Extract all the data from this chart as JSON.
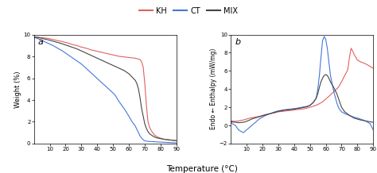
{
  "colors": {
    "KH": "#e06060",
    "CT": "#4477dd",
    "MIX": "#444444"
  },
  "panel_a": {
    "label": "a",
    "ylabel": "Weight (%)",
    "xlim": [
      0,
      90
    ],
    "ylim": [
      0,
      10
    ],
    "xticks": [
      10,
      20,
      30,
      40,
      50,
      60,
      70,
      80,
      90
    ],
    "yticks": [
      0,
      2,
      4,
      6,
      8,
      10
    ],
    "kh_x": [
      0,
      3,
      6,
      9,
      12,
      15,
      18,
      21,
      24,
      27,
      30,
      33,
      36,
      39,
      42,
      45,
      48,
      51,
      54,
      57,
      60,
      63,
      65,
      67,
      68,
      69,
      70,
      71,
      72,
      73,
      74,
      75,
      76,
      77,
      78,
      80,
      82,
      85,
      88,
      90
    ],
    "kh_y": [
      9.8,
      9.75,
      9.7,
      9.65,
      9.55,
      9.45,
      9.35,
      9.25,
      9.1,
      9.0,
      8.85,
      8.75,
      8.6,
      8.5,
      8.4,
      8.3,
      8.2,
      8.1,
      8.0,
      7.95,
      7.9,
      7.85,
      7.8,
      7.7,
      7.5,
      7.0,
      5.5,
      3.5,
      2.0,
      1.5,
      1.2,
      1.0,
      0.8,
      0.7,
      0.6,
      0.5,
      0.4,
      0.35,
      0.3,
      0.25
    ],
    "ct_x": [
      0,
      3,
      6,
      9,
      12,
      15,
      18,
      21,
      24,
      27,
      30,
      33,
      36,
      39,
      42,
      45,
      48,
      51,
      54,
      57,
      60,
      62,
      64,
      65,
      66,
      67,
      68,
      69,
      70,
      72,
      75,
      78,
      82,
      85,
      88,
      90
    ],
    "ct_y": [
      9.75,
      9.6,
      9.4,
      9.2,
      9.0,
      8.75,
      8.5,
      8.2,
      7.9,
      7.6,
      7.3,
      6.9,
      6.5,
      6.1,
      5.7,
      5.3,
      4.9,
      4.5,
      3.8,
      3.2,
      2.5,
      2.0,
      1.6,
      1.3,
      1.0,
      0.7,
      0.5,
      0.35,
      0.25,
      0.2,
      0.18,
      0.15,
      0.12,
      0.1,
      0.08,
      0.07
    ],
    "mix_x": [
      0,
      3,
      6,
      9,
      12,
      15,
      18,
      21,
      24,
      27,
      30,
      33,
      36,
      39,
      42,
      45,
      48,
      51,
      54,
      57,
      60,
      62,
      64,
      65,
      66,
      67,
      68,
      69,
      70,
      71,
      72,
      73,
      75,
      77,
      80,
      83,
      86,
      88,
      90
    ],
    "mix_y": [
      9.8,
      9.72,
      9.62,
      9.52,
      9.4,
      9.28,
      9.15,
      9.0,
      8.85,
      8.7,
      8.5,
      8.3,
      8.1,
      7.9,
      7.7,
      7.5,
      7.3,
      7.1,
      6.9,
      6.7,
      6.4,
      6.1,
      5.8,
      5.5,
      5.0,
      4.2,
      3.2,
      2.5,
      1.8,
      1.4,
      1.1,
      0.9,
      0.7,
      0.55,
      0.45,
      0.38,
      0.33,
      0.3,
      0.28
    ]
  },
  "panel_b": {
    "label": "b",
    "ylabel": "Endo ← Enthalpy (mW/mg)",
    "xlim": [
      0,
      90
    ],
    "ylim": [
      -2,
      10
    ],
    "xticks": [
      10,
      20,
      30,
      40,
      50,
      60,
      70,
      80,
      90
    ],
    "yticks": [
      -2,
      0,
      2,
      4,
      6,
      8,
      10
    ],
    "kh_x": [
      0,
      3,
      5,
      8,
      10,
      12,
      15,
      18,
      20,
      22,
      25,
      28,
      30,
      33,
      35,
      38,
      40,
      42,
      45,
      48,
      50,
      52,
      55,
      58,
      60,
      62,
      65,
      68,
      70,
      72,
      73,
      74,
      75,
      76,
      77,
      78,
      79,
      80,
      82,
      85,
      88,
      90
    ],
    "kh_y": [
      0.5,
      0.45,
      0.5,
      0.6,
      0.7,
      0.8,
      0.9,
      1.0,
      1.1,
      1.2,
      1.3,
      1.4,
      1.5,
      1.55,
      1.6,
      1.65,
      1.7,
      1.75,
      1.8,
      1.9,
      2.0,
      2.1,
      2.3,
      2.6,
      2.9,
      3.2,
      3.7,
      4.2,
      4.8,
      5.5,
      5.8,
      6.2,
      7.5,
      8.5,
      8.2,
      7.8,
      7.5,
      7.2,
      7.0,
      6.8,
      6.5,
      6.3
    ],
    "ct_x": [
      0,
      3,
      5,
      8,
      10,
      12,
      14,
      16,
      18,
      20,
      22,
      25,
      28,
      30,
      33,
      35,
      38,
      40,
      42,
      45,
      48,
      50,
      52,
      54,
      55,
      56,
      57,
      58,
      59,
      60,
      61,
      62,
      63,
      65,
      67,
      68,
      69,
      70,
      72,
      75,
      78,
      82,
      85,
      88,
      90
    ],
    "ct_y": [
      0.3,
      0.0,
      -0.5,
      -0.8,
      -0.5,
      -0.2,
      0.1,
      0.4,
      0.7,
      0.9,
      1.1,
      1.3,
      1.5,
      1.6,
      1.7,
      1.75,
      1.8,
      1.85,
      1.9,
      2.0,
      2.1,
      2.2,
      2.5,
      3.0,
      4.0,
      5.5,
      7.5,
      9.3,
      9.8,
      9.5,
      8.5,
      7.0,
      5.5,
      3.8,
      2.5,
      2.0,
      1.7,
      1.5,
      1.3,
      1.1,
      0.9,
      0.7,
      0.5,
      0.2,
      -0.5
    ],
    "mix_x": [
      0,
      3,
      5,
      8,
      10,
      12,
      14,
      16,
      18,
      20,
      22,
      25,
      28,
      30,
      33,
      35,
      38,
      40,
      42,
      45,
      48,
      50,
      52,
      54,
      55,
      56,
      57,
      58,
      59,
      60,
      61,
      62,
      63,
      65,
      67,
      68,
      69,
      70,
      72,
      75,
      78,
      82,
      85,
      88,
      90
    ],
    "mix_y": [
      0.4,
      0.35,
      0.3,
      0.35,
      0.45,
      0.6,
      0.75,
      0.85,
      0.95,
      1.05,
      1.15,
      1.3,
      1.45,
      1.55,
      1.65,
      1.7,
      1.75,
      1.8,
      1.85,
      1.95,
      2.05,
      2.2,
      2.5,
      3.0,
      3.5,
      4.2,
      4.8,
      5.2,
      5.5,
      5.6,
      5.5,
      5.2,
      4.8,
      4.2,
      3.5,
      3.0,
      2.5,
      2.0,
      1.5,
      1.1,
      0.8,
      0.6,
      0.5,
      0.4,
      0.35
    ]
  },
  "legend_labels": [
    "KH",
    "CT",
    "MIX"
  ],
  "title_fontsize": 8,
  "label_fontsize": 6,
  "tick_fontsize": 5,
  "legend_fontsize": 7
}
